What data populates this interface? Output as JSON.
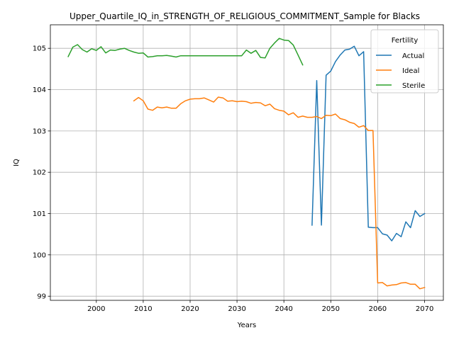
{
  "chart_data": {
    "type": "line",
    "title": "Upper_Quartile_IQ_in_STRENGTH_OF_RELIGIOUS_COMMITMENT_Sample for Blacks",
    "xlabel": "Years",
    "ylabel": "IQ",
    "xlim": [
      1990.2,
      2074.0
    ],
    "ylim": [
      98.9,
      105.57
    ],
    "xticks": [
      2000,
      2010,
      2020,
      2030,
      2040,
      2050,
      2060,
      2070
    ],
    "yticks": [
      99,
      100,
      101,
      102,
      103,
      104,
      105
    ],
    "grid": true,
    "legend": {
      "title": "Fertility",
      "position": "top-right"
    },
    "series": [
      {
        "name": "Actual",
        "color": "#1f77b4",
        "x": [
          2046,
          2047,
          2048,
          2049,
          2050,
          2051,
          2052,
          2053,
          2054,
          2055,
          2056,
          2057,
          2058,
          2059,
          2060,
          2061,
          2062,
          2063,
          2064,
          2065,
          2066,
          2067,
          2068,
          2069,
          2070
        ],
        "y": [
          100.72,
          104.22,
          100.72,
          104.35,
          104.45,
          104.68,
          104.84,
          104.96,
          104.98,
          105.05,
          104.82,
          104.92,
          100.67,
          100.66,
          100.66,
          100.51,
          100.48,
          100.34,
          100.52,
          100.44,
          100.8,
          100.66,
          101.07,
          100.93,
          101.0
        ]
      },
      {
        "name": "Ideal",
        "color": "#ff7f0e",
        "x": [
          2008,
          2009,
          2010,
          2011,
          2012,
          2013,
          2014,
          2015,
          2016,
          2017,
          2018,
          2019,
          2020,
          2021,
          2022,
          2023,
          2024,
          2025,
          2026,
          2027,
          2028,
          2029,
          2030,
          2031,
          2032,
          2033,
          2034,
          2035,
          2036,
          2037,
          2038,
          2039,
          2040,
          2041,
          2042,
          2043,
          2044,
          2045,
          2046,
          2047,
          2048,
          2049,
          2050,
          2051,
          2052,
          2053,
          2054,
          2055,
          2056,
          2057,
          2058,
          2059,
          2060,
          2061,
          2062,
          2063,
          2064,
          2065,
          2066,
          2067,
          2068,
          2069,
          2070
        ],
        "y": [
          103.73,
          103.81,
          103.73,
          103.53,
          103.5,
          103.58,
          103.56,
          103.58,
          103.55,
          103.55,
          103.66,
          103.73,
          103.77,
          103.78,
          103.78,
          103.8,
          103.75,
          103.7,
          103.82,
          103.8,
          103.72,
          103.73,
          103.71,
          103.72,
          103.71,
          103.67,
          103.69,
          103.68,
          103.61,
          103.65,
          103.54,
          103.5,
          103.48,
          103.39,
          103.44,
          103.33,
          103.36,
          103.33,
          103.33,
          103.35,
          103.3,
          103.38,
          103.37,
          103.41,
          103.3,
          103.27,
          103.21,
          103.18,
          103.09,
          103.13,
          103.01,
          103.01,
          99.32,
          99.33,
          99.25,
          99.27,
          99.28,
          99.32,
          99.33,
          99.29,
          99.29,
          99.18,
          99.21
        ]
      },
      {
        "name": "Sterile",
        "color": "#2ca02c",
        "x": [
          1994,
          1995,
          1996,
          1997,
          1998,
          1999,
          2000,
          2001,
          2002,
          2003,
          2004,
          2005,
          2006,
          2007,
          2008,
          2009,
          2010,
          2011,
          2012,
          2013,
          2014,
          2015,
          2016,
          2017,
          2018,
          2019,
          2020,
          2021,
          2022,
          2023,
          2024,
          2025,
          2026,
          2027,
          2028,
          2029,
          2030,
          2031,
          2032,
          2033,
          2034,
          2035,
          2036,
          2037,
          2038,
          2039,
          2040,
          2041,
          2042,
          2043,
          2044
        ],
        "y": [
          104.8,
          105.03,
          105.09,
          104.97,
          104.91,
          104.99,
          104.95,
          105.04,
          104.89,
          104.96,
          104.95,
          104.98,
          105.0,
          104.95,
          104.91,
          104.88,
          104.89,
          104.79,
          104.8,
          104.82,
          104.82,
          104.83,
          104.81,
          104.79,
          104.82,
          104.82,
          104.82,
          104.82,
          104.82,
          104.82,
          104.82,
          104.82,
          104.82,
          104.82,
          104.82,
          104.82,
          104.82,
          104.82,
          104.96,
          104.88,
          104.95,
          104.78,
          104.77,
          105.0,
          105.13,
          105.24,
          105.2,
          105.19,
          105.08,
          104.84,
          104.6
        ]
      }
    ]
  }
}
